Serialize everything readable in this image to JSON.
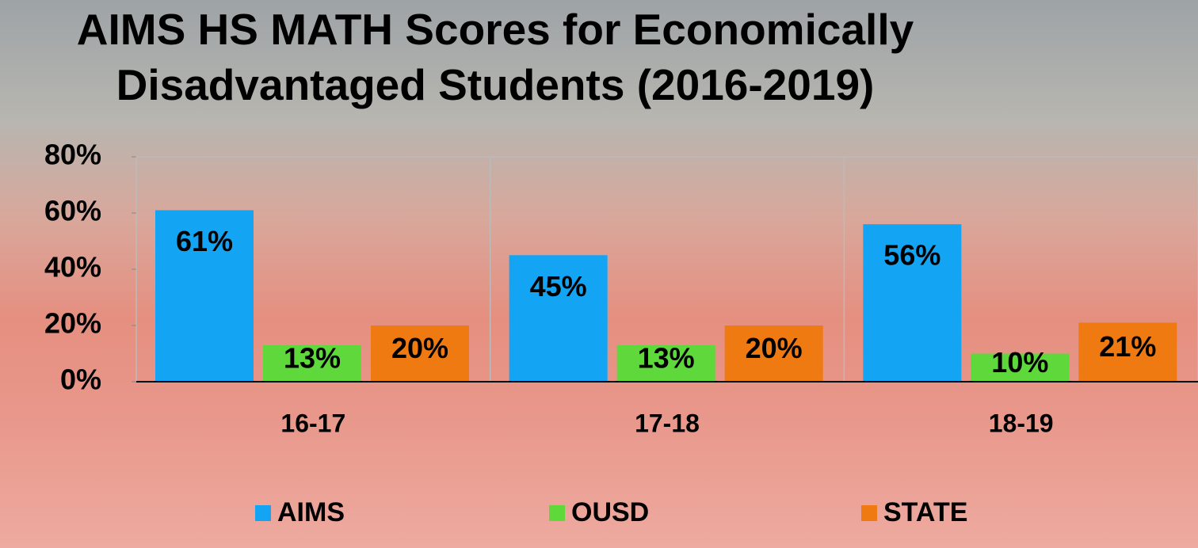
{
  "chart_data": {
    "type": "bar",
    "title": "AIMS HS MATH Scores for Economically Disadvantaged Students (2016-2019)",
    "categories": [
      "16-17",
      "17-18",
      "18-19"
    ],
    "series": [
      {
        "name": "AIMS",
        "color": "#14a4f4",
        "values": [
          61,
          45,
          56
        ],
        "value_labels": [
          "61%",
          "45%",
          "56%"
        ]
      },
      {
        "name": "OUSD",
        "color": "#5ed83b",
        "values": [
          13,
          13,
          10
        ],
        "value_labels": [
          "13%",
          "13%",
          "10%"
        ]
      },
      {
        "name": "STATE",
        "color": "#f07a12",
        "values": [
          20,
          20,
          21
        ],
        "value_labels": [
          "20%",
          "20%",
          "21%"
        ]
      }
    ],
    "ylim": [
      0,
      80
    ],
    "yticks": [
      {
        "value": 0,
        "label": "0%"
      },
      {
        "value": 20,
        "label": "20%"
      },
      {
        "value": 40,
        "label": "40%"
      },
      {
        "value": 60,
        "label": "60%"
      },
      {
        "value": 80,
        "label": "80%"
      }
    ],
    "grid": false,
    "legend": "bottom"
  }
}
